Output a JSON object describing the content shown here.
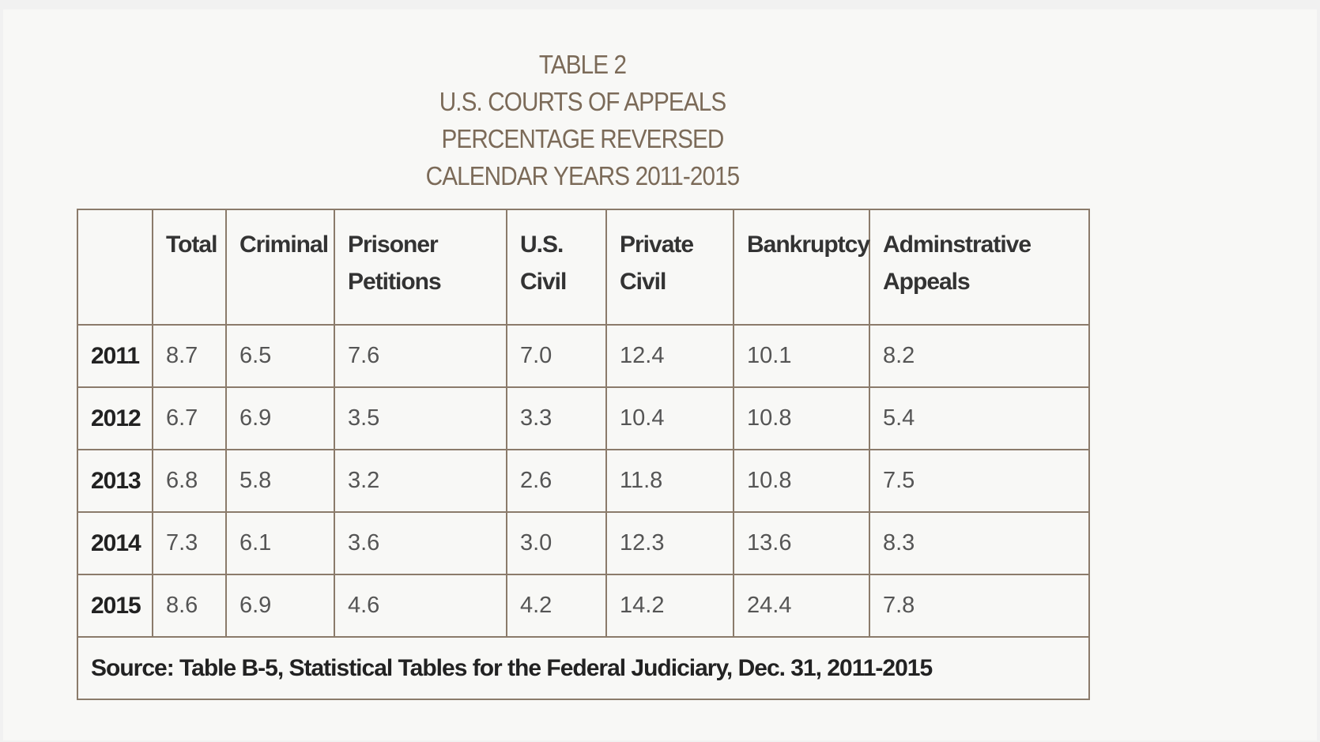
{
  "title": [
    "TABLE 2",
    "U.S. COURTS OF APPEALS",
    "PERCENTAGE REVERSED",
    "CALENDAR YEARS 2011-2015"
  ],
  "table": {
    "header": [
      "",
      "Total",
      "Criminal",
      "Prisoner Petitions",
      "U.S. Civil",
      "Private Civil",
      "Bankruptcy",
      "Adminstrative Appeals"
    ],
    "rows": [
      [
        "2011",
        "8.7",
        "6.5",
        "7.6",
        "7.0",
        "12.4",
        "10.1",
        "8.2"
      ],
      [
        "2012",
        "6.7",
        "6.9",
        "3.5",
        "3.3",
        "10.4",
        "10.8",
        "5.4"
      ],
      [
        "2013",
        "6.8",
        "5.8",
        "3.2",
        "2.6",
        "11.8",
        "10.8",
        "7.5"
      ],
      [
        "2014",
        "7.3",
        "6.1",
        "3.6",
        "3.0",
        "12.3",
        "13.6",
        "8.3"
      ],
      [
        "2015",
        "8.6",
        "6.9",
        "4.6",
        "4.2",
        "14.2",
        "24.4",
        "7.8"
      ]
    ],
    "source": "Source: Table B-5, Statistical Tables for the Federal Judiciary, Dec. 31, 2011-2015"
  }
}
